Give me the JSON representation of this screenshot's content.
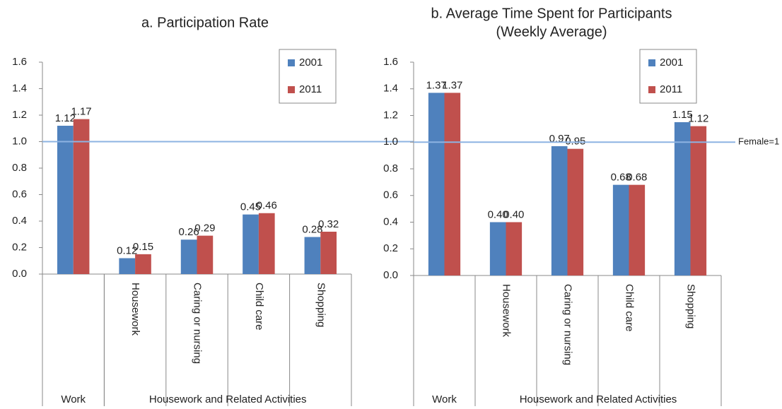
{
  "chart_data": [
    {
      "type": "bar",
      "title": "a. Participation Rate",
      "categories": [
        "Work",
        "Housework",
        "Caring or nursing",
        "Child care",
        "Shopping"
      ],
      "groups": [
        "Work",
        "Housework and Related Activities"
      ],
      "series": [
        {
          "name": "2001",
          "color": "#4f81bd",
          "values": [
            1.12,
            0.12,
            0.26,
            0.45,
            0.28
          ]
        },
        {
          "name": "2011",
          "color": "#c0504d",
          "values": [
            1.17,
            0.15,
            0.29,
            0.46,
            0.32
          ]
        }
      ],
      "ylim": [
        0,
        1.6
      ],
      "yticks": [
        {
          "value": 0,
          "label": "0.0"
        },
        0.2,
        0.4,
        0.6,
        0.8,
        {
          "value": 1,
          "label": "1.0"
        },
        1.2,
        1.4,
        1.6
      ],
      "reference_line": 1,
      "legend": "upper right"
    },
    {
      "type": "bar",
      "title": "b. Average Time Spent for Participants",
      "subtitle": "(Weekly Average)",
      "categories": [
        "Work",
        "Housework",
        "Caring or nursing",
        "Child care",
        "Shopping"
      ],
      "groups": [
        "Work",
        "Housework and Related Activities"
      ],
      "series": [
        {
          "name": "2001",
          "color": "#4f81bd",
          "values": [
            1.37,
            0.4,
            0.97,
            0.68,
            1.15
          ],
          "value_labels": [
            "1.37",
            "0.40",
            "0.97",
            "0.68",
            "1.15"
          ]
        },
        {
          "name": "2011",
          "color": "#c0504d",
          "values": [
            1.37,
            0.4,
            0.95,
            0.68,
            1.12
          ],
          "value_labels": [
            "1.37",
            "0.40",
            "0.95",
            "0.68",
            "1.12"
          ]
        }
      ],
      "ylim": [
        0,
        1.6
      ],
      "yticks": [
        {
          "value": 0,
          "label": "0.0"
        },
        0.2,
        0.4,
        0.6,
        0.8,
        {
          "value": 1,
          "label": "1.0"
        },
        1.2,
        1.4,
        1.6
      ],
      "reference_line": 1,
      "reference_label": "Female=1",
      "legend": "upper right"
    }
  ]
}
